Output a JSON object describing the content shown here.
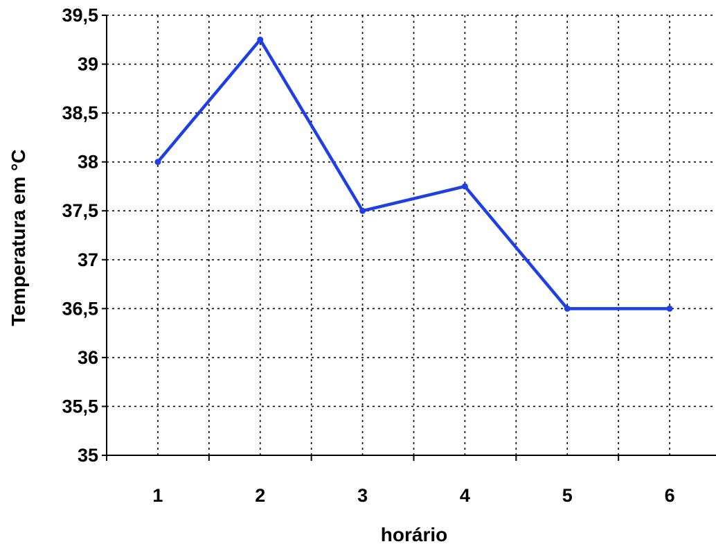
{
  "chart_data": {
    "type": "line",
    "title": "",
    "xlabel": "horário",
    "ylabel": "Temperatura em °C",
    "categories": [
      "1",
      "2",
      "3",
      "4",
      "5",
      "6"
    ],
    "series": [
      {
        "values": [
          38,
          39.25,
          37.5,
          37.75,
          36.5,
          36.5
        ]
      }
    ],
    "ylim": [
      35,
      39.5
    ],
    "yticks": [
      35,
      35.5,
      36,
      36.5,
      37,
      37.5,
      38,
      38.5,
      39,
      39.5
    ],
    "ytick_labels": [
      "35",
      "35,5",
      "36",
      "36,5",
      "37",
      "37,5",
      "38",
      "38,5",
      "39",
      "39,5"
    ],
    "grid": true,
    "grid_style": "dotted",
    "line_color": "#1f3fe6",
    "legend": "none"
  }
}
